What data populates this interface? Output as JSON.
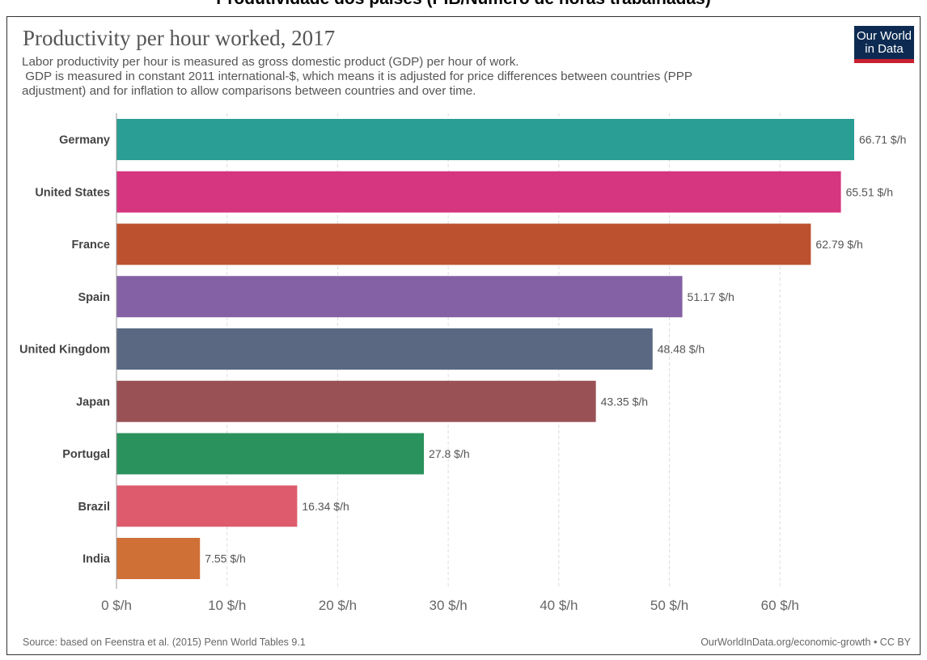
{
  "page_heading": "Produtividade dos países (PIB/Número de horas trabalhadas)",
  "logo": {
    "line1": "Our World",
    "line2": "in Data"
  },
  "footer": {
    "source": "Source: based on Feenstra et al. (2015) Penn World Tables 9.1",
    "credit": "OurWorldInData.org/economic-growth • CC BY"
  },
  "colors": {
    "axis": "#999999",
    "grid": "#dddddd"
  },
  "chart_data": {
    "type": "bar",
    "orientation": "horizontal",
    "title": "Productivity per hour worked, 2017",
    "subtitle": "Labor productivity per hour is measured as gross domestic product (GDP) per hour of work.\n GDP is measured in constant 2011 international-$, which means it is adjusted for price differences between countries (PPP adjustment) and for inflation to allow comparisons between countries and over time.",
    "categories": [
      "Germany",
      "United States",
      "France",
      "Spain",
      "United Kingdom",
      "Japan",
      "Portugal",
      "Brazil",
      "India"
    ],
    "values": [
      66.71,
      65.51,
      62.79,
      51.17,
      48.48,
      43.35,
      27.8,
      16.34,
      7.55
    ],
    "value_labels": [
      "66.71 $/h",
      "65.51 $/h",
      "62.79 $/h",
      "51.17 $/h",
      "48.48 $/h",
      "43.35 $/h",
      "27.8 $/h",
      "16.34 $/h",
      "7.55 $/h"
    ],
    "colors": [
      "#2a9d94",
      "#d6357f",
      "#bc5130",
      "#8460a4",
      "#5a6882",
      "#9a5156",
      "#2a925c",
      "#dd5b6d",
      "#cf7037"
    ],
    "xticks": [
      0,
      10,
      20,
      30,
      40,
      50,
      60
    ],
    "xtick_labels": [
      "0 $/h",
      "10 $/h",
      "20 $/h",
      "30 $/h",
      "40 $/h",
      "50 $/h",
      "60 $/h"
    ],
    "xlim": [
      0,
      66.71
    ],
    "grid": true,
    "legend": "none"
  }
}
